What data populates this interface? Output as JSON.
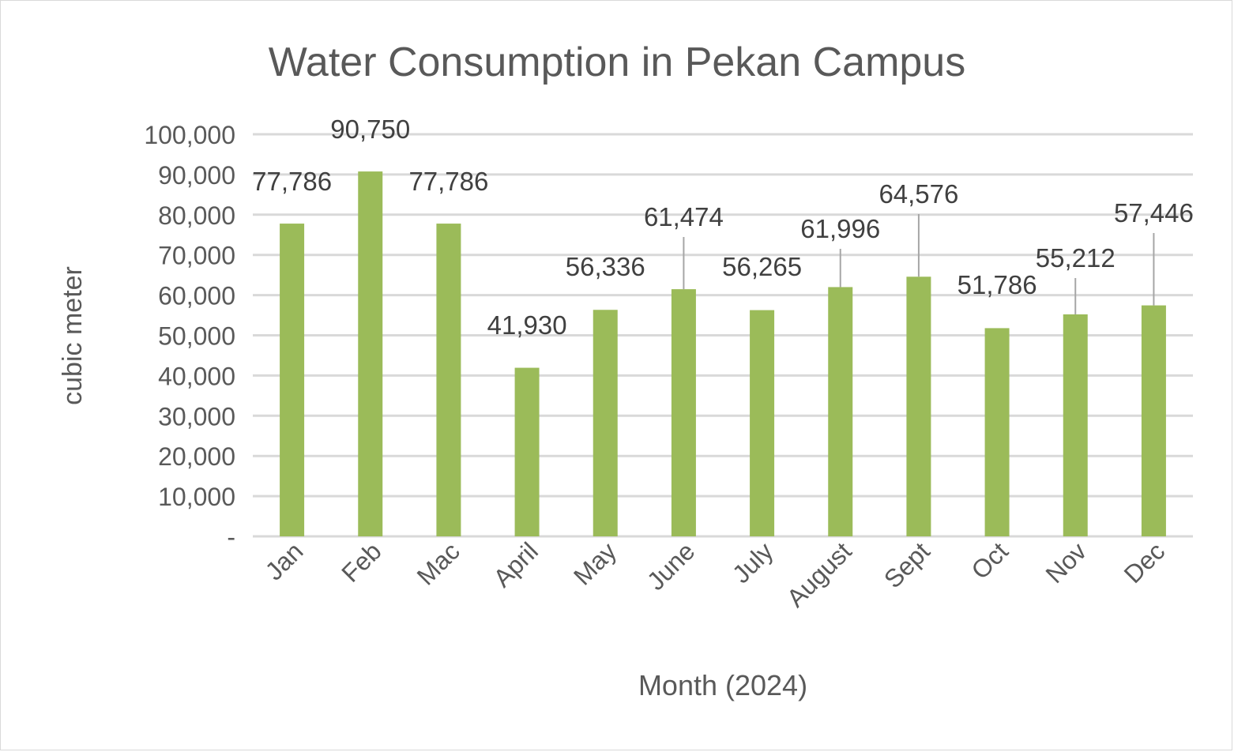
{
  "chart_data": {
    "type": "bar",
    "title": "Water Consumption in Pekan Campus",
    "xlabel": "Month (2024)",
    "ylabel": "cubic meter",
    "ylim": [
      0,
      100000
    ],
    "yticks": [
      0,
      10000,
      20000,
      30000,
      40000,
      50000,
      60000,
      70000,
      80000,
      90000,
      100000
    ],
    "ytick_labels": [
      "-",
      "10,000",
      "20,000",
      "30,000",
      "40,000",
      "50,000",
      "60,000",
      "70,000",
      "80,000",
      "90,000",
      "100,000"
    ],
    "grid": true,
    "legend": "none",
    "bar_color": "#9bbb59",
    "categories": [
      "Jan",
      "Feb",
      "Mac",
      "April",
      "May",
      "June",
      "July",
      "August",
      "Sept",
      "Oct",
      "Nov",
      "Dec"
    ],
    "values": [
      77786,
      90750,
      77786,
      41930,
      56336,
      61474,
      56265,
      61996,
      64576,
      51786,
      55212,
      57446
    ],
    "data_labels": [
      "77,786",
      "90,750",
      "77,786",
      "41,930",
      "56,336",
      "61,474",
      "56,265",
      "61,996",
      "64,576",
      "51,786",
      "55,212",
      "57,446"
    ]
  }
}
